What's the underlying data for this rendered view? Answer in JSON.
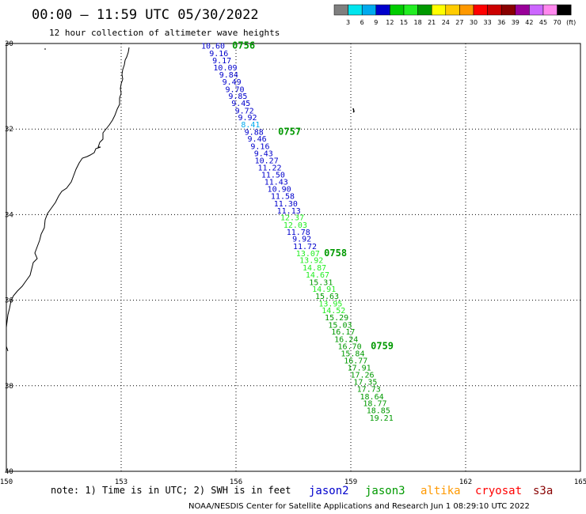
{
  "header": {
    "title": "00:00 – 11:59 UTC 05/30/2022",
    "subtitle": "12 hour collection of altimeter wave heights"
  },
  "footer": {
    "note": "note: 1) Time is in UTC; 2) SWH is in feet",
    "credit": "NOAA/NESDIS Center for Satellite Applications and Research   Jun  1 08:29:10 UTC 2022"
  },
  "colorbar": {
    "labels": [
      "3",
      "6",
      "9",
      "12",
      "15",
      "18",
      "21",
      "24",
      "27",
      "30",
      "33",
      "36",
      "39",
      "42",
      "45",
      "70",
      "(ft)"
    ],
    "colors": [
      "#7f7f7f",
      "#00e5ee",
      "#00aaee",
      "#0000cc",
      "#00cc00",
      "#22ee22",
      "#009900",
      "#ffff00",
      "#ffcc00",
      "#ff9900",
      "#ff0000",
      "#cc0000",
      "#880000",
      "#990099",
      "#cc66ff",
      "#ff88ee",
      "#000000"
    ]
  },
  "satellites": [
    {
      "name": "jason2",
      "color": "#0000cc"
    },
    {
      "name": "jason3",
      "color": "#009900"
    },
    {
      "name": "altika",
      "color": "#ff9900"
    },
    {
      "name": "cryosat",
      "color": "#ff0000"
    },
    {
      "name": "s3a",
      "color": "#880000"
    }
  ],
  "chart_data": {
    "type": "scatter",
    "xlim": [
      150,
      165
    ],
    "ylim": [
      -40,
      -30
    ],
    "x_ticks": [
      "150",
      "153",
      "156",
      "159",
      "162",
      "165"
    ],
    "y_ticks": [
      "30",
      "32",
      "34",
      "36",
      "38",
      "40"
    ],
    "grid": true,
    "track_points": [
      {
        "lon": 155.4,
        "lat": -30.05,
        "value": "10.60",
        "color": "#0000cc"
      },
      {
        "lon": 155.55,
        "lat": -30.22,
        "value": "9.16",
        "color": "#0000cc"
      },
      {
        "lon": 155.63,
        "lat": -30.39,
        "value": "9.17",
        "color": "#0000cc"
      },
      {
        "lon": 155.72,
        "lat": -30.55,
        "value": "10.09",
        "color": "#0000cc"
      },
      {
        "lon": 155.81,
        "lat": -30.72,
        "value": "9.84",
        "color": "#0000cc"
      },
      {
        "lon": 155.89,
        "lat": -30.89,
        "value": "9.49",
        "color": "#0000cc"
      },
      {
        "lon": 155.97,
        "lat": -31.06,
        "value": "9.70",
        "color": "#0000cc"
      },
      {
        "lon": 156.05,
        "lat": -31.22,
        "value": "9.85",
        "color": "#0000cc"
      },
      {
        "lon": 156.13,
        "lat": -31.39,
        "value": "9.45",
        "color": "#0000cc"
      },
      {
        "lon": 156.22,
        "lat": -31.56,
        "value": "9.72",
        "color": "#0000cc"
      },
      {
        "lon": 156.3,
        "lat": -31.72,
        "value": "9.92",
        "color": "#0000cc"
      },
      {
        "lon": 156.38,
        "lat": -31.89,
        "value": "8.41",
        "color": "#00aaee"
      },
      {
        "lon": 156.47,
        "lat": -32.06,
        "value": "9.88",
        "color": "#0000cc"
      },
      {
        "lon": 156.55,
        "lat": -32.22,
        "value": "9.46",
        "color": "#0000cc"
      },
      {
        "lon": 156.63,
        "lat": -32.39,
        "value": "9.16",
        "color": "#0000cc"
      },
      {
        "lon": 156.72,
        "lat": -32.56,
        "value": "9.43",
        "color": "#0000cc"
      },
      {
        "lon": 156.8,
        "lat": -32.73,
        "value": "10.27",
        "color": "#0000cc"
      },
      {
        "lon": 156.88,
        "lat": -32.89,
        "value": "11.22",
        "color": "#0000cc"
      },
      {
        "lon": 156.97,
        "lat": -33.06,
        "value": "11.50",
        "color": "#0000cc"
      },
      {
        "lon": 157.05,
        "lat": -33.23,
        "value": "11.43",
        "color": "#0000cc"
      },
      {
        "lon": 157.13,
        "lat": -33.39,
        "value": "10.90",
        "color": "#0000cc"
      },
      {
        "lon": 157.22,
        "lat": -33.56,
        "value": "11.58",
        "color": "#0000cc"
      },
      {
        "lon": 157.3,
        "lat": -33.73,
        "value": "11.30",
        "color": "#0000cc"
      },
      {
        "lon": 157.38,
        "lat": -33.9,
        "value": "11.13",
        "color": "#0000cc"
      },
      {
        "lon": 157.47,
        "lat": -34.06,
        "value": "12.37",
        "color": "#22ee22"
      },
      {
        "lon": 157.55,
        "lat": -34.23,
        "value": "12.03",
        "color": "#22ee22"
      },
      {
        "lon": 157.63,
        "lat": -34.4,
        "value": "11.78",
        "color": "#0000cc"
      },
      {
        "lon": 157.72,
        "lat": -34.56,
        "value": "9.92",
        "color": "#0000cc"
      },
      {
        "lon": 157.8,
        "lat": -34.73,
        "value": "11.72",
        "color": "#0000cc"
      },
      {
        "lon": 157.88,
        "lat": -34.9,
        "value": "13.07",
        "color": "#22ee22"
      },
      {
        "lon": 157.97,
        "lat": -35.06,
        "value": "13.92",
        "color": "#22ee22"
      },
      {
        "lon": 158.05,
        "lat": -35.23,
        "value": "14.87",
        "color": "#22ee22"
      },
      {
        "lon": 158.13,
        "lat": -35.4,
        "value": "14.67",
        "color": "#22ee22"
      },
      {
        "lon": 158.22,
        "lat": -35.57,
        "value": "15.31",
        "color": "#009900"
      },
      {
        "lon": 158.3,
        "lat": -35.73,
        "value": "14.91",
        "color": "#22ee22"
      },
      {
        "lon": 158.38,
        "lat": -35.9,
        "value": "15.63",
        "color": "#009900"
      },
      {
        "lon": 158.47,
        "lat": -36.07,
        "value": "13.95",
        "color": "#22ee22"
      },
      {
        "lon": 158.55,
        "lat": -36.23,
        "value": "14.52",
        "color": "#22ee22"
      },
      {
        "lon": 158.63,
        "lat": -36.4,
        "value": "15.29",
        "color": "#009900"
      },
      {
        "lon": 158.72,
        "lat": -36.57,
        "value": "15.03",
        "color": "#009900"
      },
      {
        "lon": 158.8,
        "lat": -36.73,
        "value": "16.17",
        "color": "#009900"
      },
      {
        "lon": 158.88,
        "lat": -36.9,
        "value": "16.24",
        "color": "#009900"
      },
      {
        "lon": 158.97,
        "lat": -37.07,
        "value": "16.70",
        "color": "#009900"
      },
      {
        "lon": 159.05,
        "lat": -37.24,
        "value": "15.84",
        "color": "#009900"
      },
      {
        "lon": 159.13,
        "lat": -37.4,
        "value": "16.77",
        "color": "#009900"
      },
      {
        "lon": 159.22,
        "lat": -37.57,
        "value": "17.91",
        "color": "#009900"
      },
      {
        "lon": 159.3,
        "lat": -37.74,
        "value": "17.26",
        "color": "#009900"
      },
      {
        "lon": 159.38,
        "lat": -37.9,
        "value": "17.35",
        "color": "#009900"
      },
      {
        "lon": 159.47,
        "lat": -38.07,
        "value": "17.73",
        "color": "#009900"
      },
      {
        "lon": 159.55,
        "lat": -38.24,
        "value": "18.64",
        "color": "#009900"
      },
      {
        "lon": 159.63,
        "lat": -38.4,
        "value": "18.77",
        "color": "#009900"
      },
      {
        "lon": 159.72,
        "lat": -38.57,
        "value": "18.85",
        "color": "#009900"
      },
      {
        "lon": 159.8,
        "lat": -38.74,
        "value": "19.21",
        "color": "#009900"
      }
    ],
    "time_labels": [
      {
        "text": "0756",
        "lon": 155.9,
        "lat": -30.05
      },
      {
        "text": "0757",
        "lon": 157.1,
        "lat": -32.06
      },
      {
        "text": "0758",
        "lon": 158.3,
        "lat": -34.9
      },
      {
        "text": "0759",
        "lon": 159.52,
        "lat": -37.07
      }
    ]
  }
}
